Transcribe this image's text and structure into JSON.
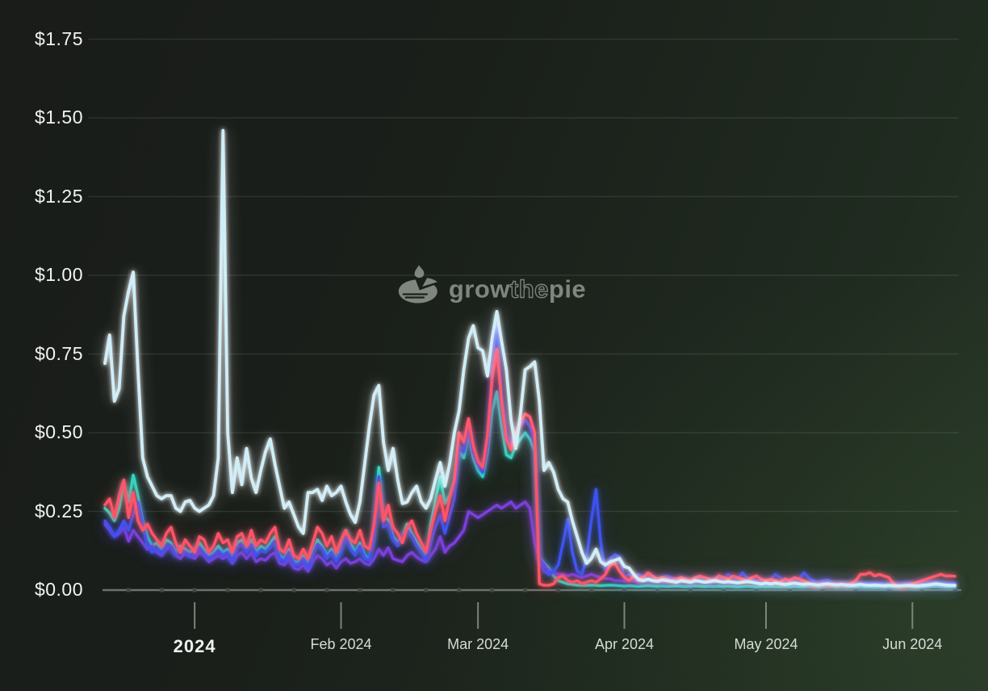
{
  "watermark": {
    "grow": "grow",
    "the": "the",
    "pie": "pie",
    "logo_color": "#949d94"
  },
  "chart_data": {
    "type": "line",
    "title": "",
    "xlabel": "",
    "ylabel": "",
    "currency": "USD",
    "grid": "horizontal",
    "legend": "none",
    "ylim": [
      0,
      1.75
    ],
    "num_points": 181,
    "x_unit": "day",
    "y_axis": {
      "ticks": [
        {
          "label": "$0.00",
          "value": 0
        },
        {
          "label": "$0.25",
          "value": 0.25
        },
        {
          "label": "$0.50",
          "value": 0.5
        },
        {
          "label": "$0.75",
          "value": 0.75
        },
        {
          "label": "$1.00",
          "value": 1.0
        },
        {
          "label": "$1.25",
          "value": 1.25
        },
        {
          "label": "$1.50",
          "value": 1.5
        },
        {
          "label": "$1.75",
          "value": 1.75
        }
      ]
    },
    "x_axis": {
      "ticks": [
        {
          "label": "2024",
          "day_index": 19,
          "year_style": true
        },
        {
          "label": "Feb 2024",
          "day_index": 50
        },
        {
          "label": "Mar 2024",
          "day_index": 79
        },
        {
          "label": "Apr 2024",
          "day_index": 110
        },
        {
          "label": "May 2024",
          "day_index": 140
        },
        {
          "label": "Jun 2024",
          "day_index": 171
        }
      ],
      "minor_ticks": {
        "first_day_index": 5,
        "step_days": 7
      }
    },
    "series": [
      {
        "name": "teal",
        "color": "#2ed9c3",
        "glow": "#2ed9c3",
        "width": 3.4,
        "values": [
          0.26,
          0.245,
          0.22,
          0.26,
          0.34,
          0.28,
          0.365,
          0.3,
          0.22,
          0.17,
          0.14,
          0.15,
          0.13,
          0.16,
          0.15,
          0.12,
          0.14,
          0.13,
          0.12,
          0.13,
          0.15,
          0.13,
          0.11,
          0.12,
          0.14,
          0.12,
          0.13,
          0.1,
          0.15,
          0.16,
          0.13,
          0.16,
          0.12,
          0.14,
          0.13,
          0.15,
          0.17,
          0.11,
          0.1,
          0.13,
          0.09,
          0.09,
          0.11,
          0.08,
          0.12,
          0.16,
          0.14,
          0.11,
          0.13,
          0.1,
          0.13,
          0.19,
          0.15,
          0.12,
          0.15,
          0.11,
          0.1,
          0.17,
          0.39,
          0.23,
          0.225,
          0.17,
          0.15,
          0.17,
          0.21,
          0.18,
          0.155,
          0.13,
          0.1,
          0.21,
          0.285,
          0.36,
          0.275,
          0.3,
          0.35,
          0.44,
          0.42,
          0.5,
          0.42,
          0.38,
          0.36,
          0.44,
          0.57,
          0.63,
          0.52,
          0.43,
          0.42,
          0.46,
          0.48,
          0.5,
          0.48,
          0.44,
          0.105,
          0.085,
          0.07,
          0.046,
          0.03,
          0.025,
          0.02,
          0.018,
          0.016,
          0.015,
          0.015,
          0.016,
          0.015,
          0.014,
          0.015,
          0.016,
          0.015,
          0.014,
          0.013,
          0.014,
          0.013,
          0.012,
          0.013,
          0.014,
          0.013,
          0.012,
          0.013,
          0.012,
          0.012,
          0.013,
          0.012,
          0.011,
          0.012,
          0.013,
          0.012,
          0.011,
          0.012,
          0.011,
          0.012,
          0.011,
          0.012,
          0.011,
          0.01,
          0.011,
          0.012,
          0.011,
          0.01,
          0.011,
          0.01,
          0.011,
          0.01,
          0.01,
          0.011,
          0.01,
          0.011,
          0.01,
          0.01,
          0.011,
          0.01,
          0.009,
          0.01,
          0.011,
          0.01,
          0.009,
          0.01,
          0.009,
          0.01,
          0.011,
          0.01,
          0.009,
          0.01,
          0.009,
          0.01,
          0.009,
          0.01,
          0.009,
          0.008,
          0.009,
          0.01,
          0.009,
          0.009,
          0.01,
          0.011,
          0.012,
          0.012,
          0.011,
          0.01,
          0.01,
          0.01
        ]
      },
      {
        "name": "purple",
        "color": "#7c40dd",
        "glow": "#7c40dd",
        "width": 3.4,
        "values": [
          0.21,
          0.19,
          0.17,
          0.18,
          0.2,
          0.155,
          0.19,
          0.17,
          0.15,
          0.13,
          0.14,
          0.12,
          0.11,
          0.13,
          0.14,
          0.11,
          0.1,
          0.12,
          0.11,
          0.1,
          0.12,
          0.11,
          0.09,
          0.1,
          0.11,
          0.1,
          0.11,
          0.085,
          0.11,
          0.12,
          0.1,
          0.12,
          0.09,
          0.1,
          0.095,
          0.11,
          0.12,
          0.085,
          0.08,
          0.1,
          0.07,
          0.065,
          0.08,
          0.06,
          0.09,
          0.11,
          0.1,
          0.08,
          0.09,
          0.07,
          0.09,
          0.1,
          0.085,
          0.09,
          0.1,
          0.085,
          0.08,
          0.1,
          0.13,
          0.11,
          0.135,
          0.1,
          0.095,
          0.09,
          0.11,
          0.12,
          0.105,
          0.095,
          0.09,
          0.11,
          0.13,
          0.17,
          0.12,
          0.14,
          0.15,
          0.17,
          0.19,
          0.25,
          0.24,
          0.23,
          0.24,
          0.25,
          0.26,
          0.27,
          0.26,
          0.27,
          0.28,
          0.26,
          0.27,
          0.28,
          0.26,
          0.15,
          0.1,
          0.08,
          0.06,
          0.055,
          0.05,
          0.05,
          0.045,
          0.05,
          0.045,
          0.04,
          0.045,
          0.05,
          0.045,
          0.04,
          0.036,
          0.036,
          0.03,
          0.03,
          0.028,
          0.03,
          0.028,
          0.025,
          0.028,
          0.03,
          0.028,
          0.025,
          0.028,
          0.026,
          0.025,
          0.026,
          0.028,
          0.026,
          0.024,
          0.026,
          0.028,
          0.026,
          0.024,
          0.026,
          0.028,
          0.026,
          0.024,
          0.026,
          0.024,
          0.026,
          0.028,
          0.026,
          0.024,
          0.022,
          0.024,
          0.022,
          0.024,
          0.022,
          0.02,
          0.022,
          0.024,
          0.022,
          0.02,
          0.022,
          0.02,
          0.018,
          0.02,
          0.022,
          0.02,
          0.018,
          0.02,
          0.018,
          0.02,
          0.022,
          0.02,
          0.018,
          0.02,
          0.018,
          0.02,
          0.018,
          0.016,
          0.018,
          0.016,
          0.018,
          0.02,
          0.018,
          0.018,
          0.02,
          0.022,
          0.024,
          0.022,
          0.02,
          0.02,
          0.02,
          0.02
        ]
      },
      {
        "name": "blue",
        "color": "#3d52f0",
        "glow": "#3d52f0",
        "width": 3.4,
        "values": [
          0.22,
          0.2,
          0.17,
          0.19,
          0.22,
          0.19,
          0.24,
          0.28,
          0.21,
          0.14,
          0.12,
          0.13,
          0.115,
          0.14,
          0.135,
          0.11,
          0.125,
          0.115,
          0.105,
          0.115,
          0.135,
          0.115,
          0.1,
          0.11,
          0.125,
          0.11,
          0.12,
          0.09,
          0.135,
          0.145,
          0.12,
          0.145,
          0.11,
          0.125,
          0.12,
          0.135,
          0.155,
          0.1,
          0.09,
          0.12,
          0.08,
          0.08,
          0.1,
          0.07,
          0.11,
          0.145,
          0.13,
          0.1,
          0.12,
          0.09,
          0.12,
          0.17,
          0.13,
          0.11,
          0.14,
          0.1,
          0.095,
          0.16,
          0.36,
          0.2,
          0.21,
          0.16,
          0.14,
          0.17,
          0.19,
          0.17,
          0.14,
          0.12,
          0.095,
          0.15,
          0.2,
          0.24,
          0.18,
          0.235,
          0.29,
          0.46,
          0.44,
          0.52,
          0.44,
          0.4,
          0.375,
          0.46,
          0.7,
          0.84,
          0.62,
          0.5,
          0.46,
          0.5,
          0.52,
          0.54,
          0.52,
          0.47,
          0.1,
          0.06,
          0.05,
          0.06,
          0.08,
          0.15,
          0.225,
          0.12,
          0.06,
          0.05,
          0.1,
          0.22,
          0.32,
          0.15,
          0.06,
          0.1,
          0.113,
          0.105,
          0.04,
          0.05,
          0.04,
          0.05,
          0.045,
          0.05,
          0.04,
          0.035,
          0.04,
          0.045,
          0.04,
          0.035,
          0.04,
          0.035,
          0.03,
          0.035,
          0.04,
          0.035,
          0.03,
          0.035,
          0.04,
          0.035,
          0.05,
          0.04,
          0.035,
          0.055,
          0.04,
          0.035,
          0.03,
          0.035,
          0.03,
          0.035,
          0.05,
          0.04,
          0.03,
          0.035,
          0.03,
          0.035,
          0.055,
          0.04,
          0.03,
          0.025,
          0.03,
          0.033,
          0.025,
          0.02,
          0.022,
          0.02,
          0.022,
          0.025,
          0.022,
          0.02,
          0.022,
          0.02,
          0.022,
          0.02,
          0.018,
          0.02,
          0.018,
          0.02,
          0.022,
          0.02,
          0.02,
          0.028,
          0.025,
          0.022,
          0.025,
          0.022,
          0.02,
          0.02,
          0.02
        ]
      },
      {
        "name": "red",
        "color": "#fe5468",
        "glow": "#fe5468",
        "width": 3.4,
        "values": [
          0.27,
          0.29,
          0.23,
          0.3,
          0.35,
          0.23,
          0.31,
          0.22,
          0.19,
          0.21,
          0.18,
          0.16,
          0.14,
          0.18,
          0.2,
          0.15,
          0.12,
          0.16,
          0.14,
          0.12,
          0.17,
          0.16,
          0.12,
          0.14,
          0.18,
          0.15,
          0.16,
          0.12,
          0.17,
          0.18,
          0.14,
          0.19,
          0.14,
          0.16,
          0.15,
          0.18,
          0.2,
          0.13,
          0.12,
          0.16,
          0.11,
          0.1,
          0.13,
          0.1,
          0.15,
          0.2,
          0.18,
          0.14,
          0.17,
          0.12,
          0.16,
          0.19,
          0.16,
          0.15,
          0.19,
          0.14,
          0.13,
          0.21,
          0.34,
          0.22,
          0.27,
          0.2,
          0.18,
          0.15,
          0.2,
          0.22,
          0.18,
          0.15,
          0.12,
          0.19,
          0.25,
          0.3,
          0.22,
          0.29,
          0.35,
          0.5,
          0.47,
          0.545,
          0.46,
          0.41,
          0.39,
          0.49,
          0.67,
          0.765,
          0.6,
          0.48,
          0.445,
          0.5,
          0.53,
          0.56,
          0.55,
          0.5,
          0.02,
          0.015,
          0.015,
          0.02,
          0.04,
          0.045,
          0.03,
          0.025,
          0.03,
          0.02,
          0.025,
          0.03,
          0.025,
          0.036,
          0.05,
          0.08,
          0.085,
          0.06,
          0.04,
          0.03,
          0.046,
          0.035,
          0.04,
          0.055,
          0.045,
          0.035,
          0.04,
          0.036,
          0.03,
          0.035,
          0.04,
          0.035,
          0.03,
          0.04,
          0.045,
          0.04,
          0.035,
          0.03,
          0.046,
          0.04,
          0.035,
          0.045,
          0.04,
          0.035,
          0.03,
          0.04,
          0.045,
          0.035,
          0.03,
          0.035,
          0.03,
          0.025,
          0.036,
          0.03,
          0.04,
          0.036,
          0.03,
          0.02,
          0.015,
          0.015,
          0.02,
          0.015,
          0.015,
          0.02,
          0.015,
          0.018,
          0.02,
          0.03,
          0.05,
          0.05,
          0.056,
          0.045,
          0.05,
          0.045,
          0.04,
          0.02,
          0.012,
          0.01,
          0.015,
          0.02,
          0.025,
          0.03,
          0.035,
          0.04,
          0.045,
          0.05,
          0.045,
          0.045,
          0.044
        ]
      },
      {
        "name": "light-blue",
        "color": "#cfeef8",
        "glow": "#ffffff",
        "width": 3.8,
        "values": [
          0.72,
          0.81,
          0.6,
          0.64,
          0.87,
          0.95,
          1.01,
          0.7,
          0.42,
          0.36,
          0.33,
          0.3,
          0.29,
          0.3,
          0.3,
          0.26,
          0.25,
          0.28,
          0.285,
          0.26,
          0.25,
          0.26,
          0.27,
          0.3,
          0.42,
          1.46,
          0.5,
          0.31,
          0.42,
          0.335,
          0.45,
          0.355,
          0.31,
          0.38,
          0.44,
          0.48,
          0.4,
          0.33,
          0.26,
          0.28,
          0.24,
          0.2,
          0.18,
          0.31,
          0.31,
          0.32,
          0.285,
          0.33,
          0.3,
          0.31,
          0.33,
          0.28,
          0.24,
          0.215,
          0.28,
          0.4,
          0.52,
          0.62,
          0.65,
          0.47,
          0.38,
          0.45,
          0.35,
          0.275,
          0.28,
          0.31,
          0.33,
          0.28,
          0.26,
          0.29,
          0.35,
          0.405,
          0.33,
          0.4,
          0.5,
          0.57,
          0.7,
          0.8,
          0.84,
          0.77,
          0.76,
          0.68,
          0.8,
          0.885,
          0.79,
          0.7,
          0.54,
          0.45,
          0.56,
          0.7,
          0.71,
          0.725,
          0.6,
          0.38,
          0.405,
          0.375,
          0.32,
          0.29,
          0.28,
          0.22,
          0.17,
          0.12,
          0.085,
          0.1,
          0.13,
          0.09,
          0.08,
          0.09,
          0.095,
          0.1,
          0.075,
          0.07,
          0.05,
          0.033,
          0.03,
          0.035,
          0.03,
          0.028,
          0.032,
          0.03,
          0.028,
          0.025,
          0.03,
          0.028,
          0.025,
          0.03,
          0.028,
          0.025,
          0.027,
          0.03,
          0.028,
          0.025,
          0.027,
          0.025,
          0.023,
          0.025,
          0.027,
          0.025,
          0.022,
          0.02,
          0.022,
          0.02,
          0.022,
          0.02,
          0.018,
          0.02,
          0.022,
          0.02,
          0.018,
          0.02,
          0.018,
          0.016,
          0.018,
          0.02,
          0.018,
          0.016,
          0.018,
          0.016,
          0.015,
          0.016,
          0.018,
          0.016,
          0.015,
          0.016,
          0.015,
          0.014,
          0.015,
          0.014,
          0.013,
          0.014,
          0.015,
          0.014,
          0.013,
          0.015,
          0.016,
          0.018,
          0.02,
          0.018,
          0.016,
          0.015,
          0.015
        ]
      }
    ],
    "style": {
      "grid_color": "rgba(214,230,214,0.11)",
      "axis_color": "#6f716f",
      "minor_tick_color": "#454745",
      "month_tick_color": "#8f918f",
      "y_label_color": "#f2f4f2",
      "x_label_color": "#d5dcd5",
      "year_label_color": "#eef1ee"
    }
  }
}
